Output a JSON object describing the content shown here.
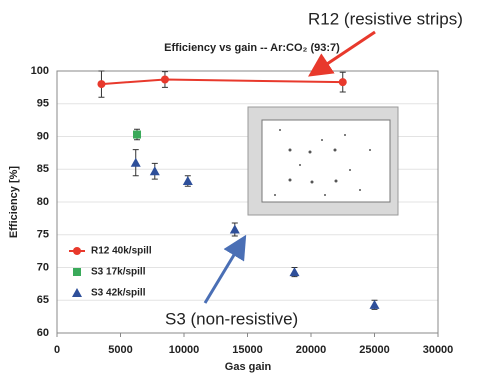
{
  "chart_data": {
    "type": "scatter",
    "title": "Efficiency vs gain -- Ar:CO₂ (93:7)",
    "xlabel": "Gas gain",
    "ylabel": "Efficiency [%]",
    "xlim": [
      0,
      30000
    ],
    "xticks": [
      0,
      5000,
      10000,
      15000,
      20000,
      25000,
      30000
    ],
    "ylim": [
      60,
      100
    ],
    "yticks": [
      60,
      65,
      70,
      75,
      80,
      85,
      90,
      95,
      100
    ],
    "grid": true,
    "legend": "lower left",
    "series": [
      {
        "name": "R12 40k/spill",
        "color": "#e8392c",
        "marker": "circle",
        "line": true,
        "x": [
          3500,
          8500,
          22500
        ],
        "values": [
          98,
          98.7,
          98.3
        ],
        "errors": [
          2,
          1.2,
          1.5
        ]
      },
      {
        "name": "S3 17k/spill",
        "color": "#3aaa5a",
        "marker": "square",
        "line": false,
        "x": [
          6300
        ],
        "values": [
          90.3
        ],
        "errors": [
          0.8
        ]
      },
      {
        "name": "S3 42k/spill",
        "color": "#2e4f9a",
        "marker": "triangle",
        "line": false,
        "x": [
          6200,
          7700,
          10300,
          14000,
          18700,
          25000
        ],
        "values": [
          86,
          84.7,
          83.2,
          75.8,
          69.3,
          64.3
        ],
        "errors": [
          2,
          1.2,
          0.8,
          1,
          0.7,
          0.7
        ]
      }
    ],
    "annotations": [
      {
        "text": "R12 (resistive strips)",
        "color": "#e8392c"
      },
      {
        "text": "S3 (non-resistive)",
        "color": "#4a6fb5"
      }
    ]
  }
}
